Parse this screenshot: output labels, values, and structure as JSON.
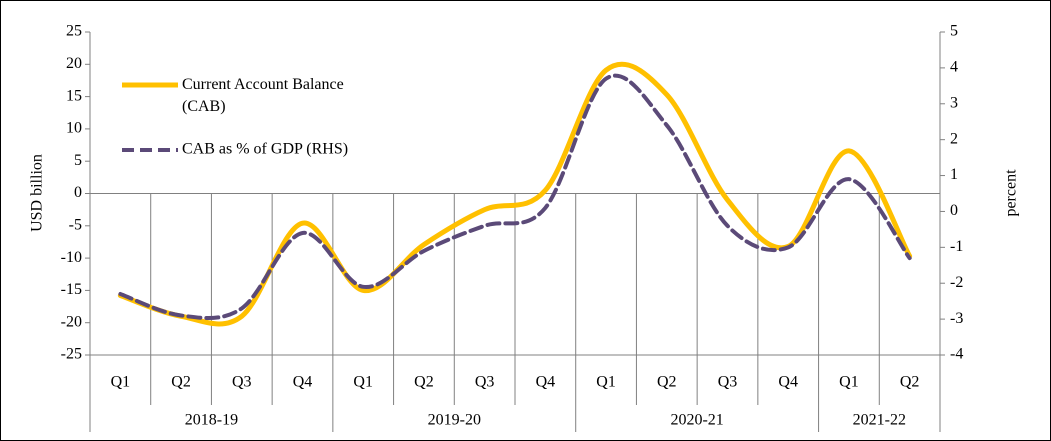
{
  "chart_data": {
    "type": "line",
    "groups": [
      {
        "label": "2018-19",
        "categories": [
          "Q1",
          "Q2",
          "Q3",
          "Q4"
        ]
      },
      {
        "label": "2019-20",
        "categories": [
          "Q1",
          "Q2",
          "Q3",
          "Q4"
        ]
      },
      {
        "label": "2020-21",
        "categories": [
          "Q1",
          "Q2",
          "Q3",
          "Q4"
        ]
      },
      {
        "label": "2021-22",
        "categories": [
          "Q1",
          "Q2"
        ]
      }
    ],
    "series": [
      {
        "name": "Current Account Balance (CAB)",
        "color": "#ffc000",
        "dash": false,
        "values": [
          -15.8,
          -19.0,
          -19.0,
          -4.6,
          -15.0,
          -7.9,
          -2.5,
          0.5,
          19.1,
          15.3,
          -1.0,
          -8.2,
          6.6,
          -9.7
        ]
      },
      {
        "name": "CAB as % of GDP (RHS)",
        "color": "#5b4a78",
        "dash": true,
        "axis": "y2",
        "values": [
          -2.3,
          -2.9,
          -2.7,
          -0.6,
          -2.1,
          -1.1,
          -0.4,
          0.1,
          3.7,
          2.4,
          -0.4,
          -1.0,
          0.9,
          -1.3
        ]
      }
    ],
    "ylabel": "USD billion",
    "y2label": "percent",
    "ylim": [
      -25,
      25
    ],
    "yticks": [
      -25,
      -20,
      -15,
      -10,
      -5,
      0,
      5,
      10,
      15,
      20,
      25
    ],
    "y2lim": [
      -4,
      5
    ],
    "y2ticks": [
      -4,
      -3,
      -2,
      -1,
      0,
      1,
      2,
      3,
      4,
      5
    ]
  }
}
